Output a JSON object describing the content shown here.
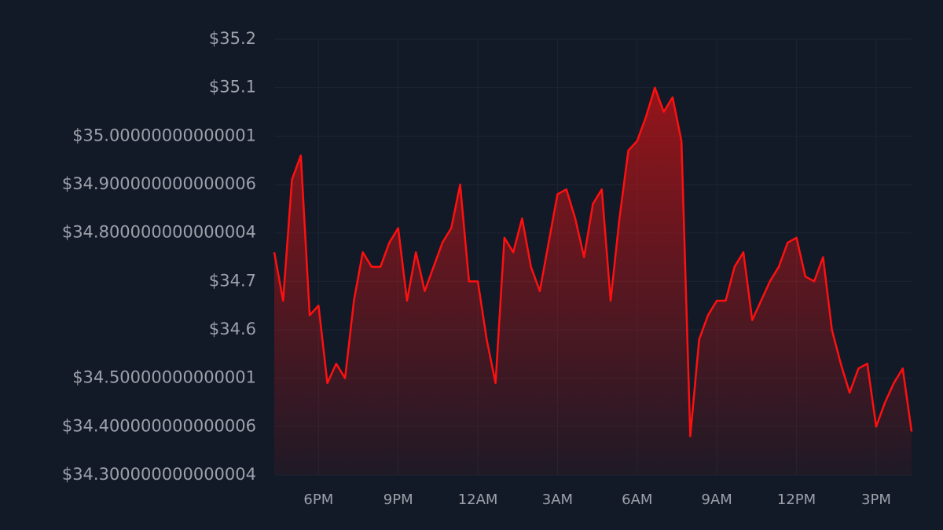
{
  "chart_data": {
    "type": "area",
    "categories": [
      null,
      null,
      null,
      null,
      null,
      "6PM",
      null,
      null,
      null,
      null,
      null,
      null,
      null,
      null,
      "9PM",
      null,
      null,
      null,
      null,
      null,
      null,
      null,
      null,
      "12AM",
      null,
      null,
      null,
      null,
      null,
      null,
      null,
      null,
      "3AM",
      null,
      null,
      null,
      null,
      null,
      null,
      null,
      null,
      "6AM",
      null,
      null,
      null,
      null,
      null,
      null,
      null,
      null,
      "9AM",
      null,
      null,
      null,
      null,
      null,
      null,
      null,
      null,
      "12PM",
      null,
      null,
      null,
      null,
      null,
      null,
      null,
      null,
      "3PM",
      null,
      null,
      null,
      null
    ],
    "values": [
      34.76,
      34.66,
      34.91,
      34.96,
      34.63,
      34.65,
      34.49,
      34.53,
      34.5,
      34.66,
      34.76,
      34.73,
      34.73,
      34.78,
      34.81,
      34.66,
      34.76,
      34.68,
      34.73,
      34.78,
      34.81,
      34.9,
      34.7,
      34.7,
      34.58,
      34.49,
      34.79,
      34.76,
      34.83,
      34.73,
      34.68,
      34.78,
      34.88,
      34.89,
      34.83,
      34.75,
      34.86,
      34.89,
      34.66,
      34.83,
      34.97,
      34.99,
      35.04,
      35.1,
      35.05,
      35.08,
      34.99,
      34.38,
      34.58,
      34.63,
      34.66,
      34.66,
      34.73,
      34.76,
      34.62,
      34.66,
      34.7,
      34.73,
      34.78,
      34.79,
      34.71,
      34.7,
      34.75,
      34.6,
      34.53,
      34.47,
      34.52,
      34.53,
      34.4,
      34.45,
      34.49,
      34.52,
      34.39
    ],
    "color": "#ff1010",
    "ylim": [
      34.3,
      35.2
    ],
    "yticks": [
      {
        "value": 34.3,
        "label": "$34.300000000000004"
      },
      {
        "value": 34.4,
        "label": "$34.400000000000006"
      },
      {
        "value": 34.5,
        "label": "$34.50000000000001"
      },
      {
        "value": 34.6,
        "label": "$34.6"
      },
      {
        "value": 34.7,
        "label": "$34.7"
      },
      {
        "value": 34.8,
        "label": "$34.800000000000004"
      },
      {
        "value": 34.9,
        "label": "$34.900000000000006"
      },
      {
        "value": 35.0,
        "label": "$35.00000000000001"
      },
      {
        "value": 35.1,
        "label": "$35.1"
      },
      {
        "value": 35.2,
        "label": "$35.2"
      }
    ],
    "grid": true
  }
}
